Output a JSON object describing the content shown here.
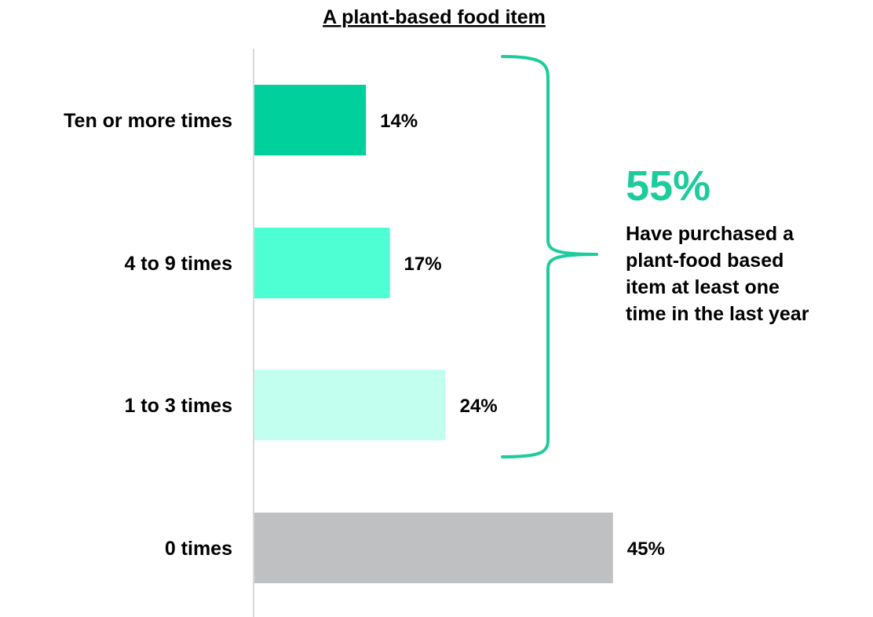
{
  "chart_data": {
    "type": "bar",
    "orientation": "horizontal",
    "title": "A plant-based food item",
    "categories": [
      "Ten or more times",
      "4 to 9 times",
      "1 to 3 times",
      "0 times"
    ],
    "values": [
      14,
      17,
      24,
      45
    ],
    "value_labels": [
      "14%",
      "17%",
      "24%",
      "45%"
    ],
    "xlim": [
      0,
      45
    ],
    "grid": false,
    "bar_colors": [
      "#00D09C",
      "#4DFFD2",
      "#C2FFEE",
      "#BFC0C2"
    ],
    "callout": {
      "value": "55%",
      "lines": [
        "Have purchased a",
        "plant-food based",
        "item at least one",
        "time in the last year"
      ],
      "color": "#1DCC9D",
      "brace_covers": [
        "Ten or more times",
        "4 to 9 times",
        "1 to 3 times"
      ]
    }
  },
  "colors": {
    "axis": "#D9D9D9",
    "brace": "#1DCC9D",
    "text": "#000000"
  }
}
